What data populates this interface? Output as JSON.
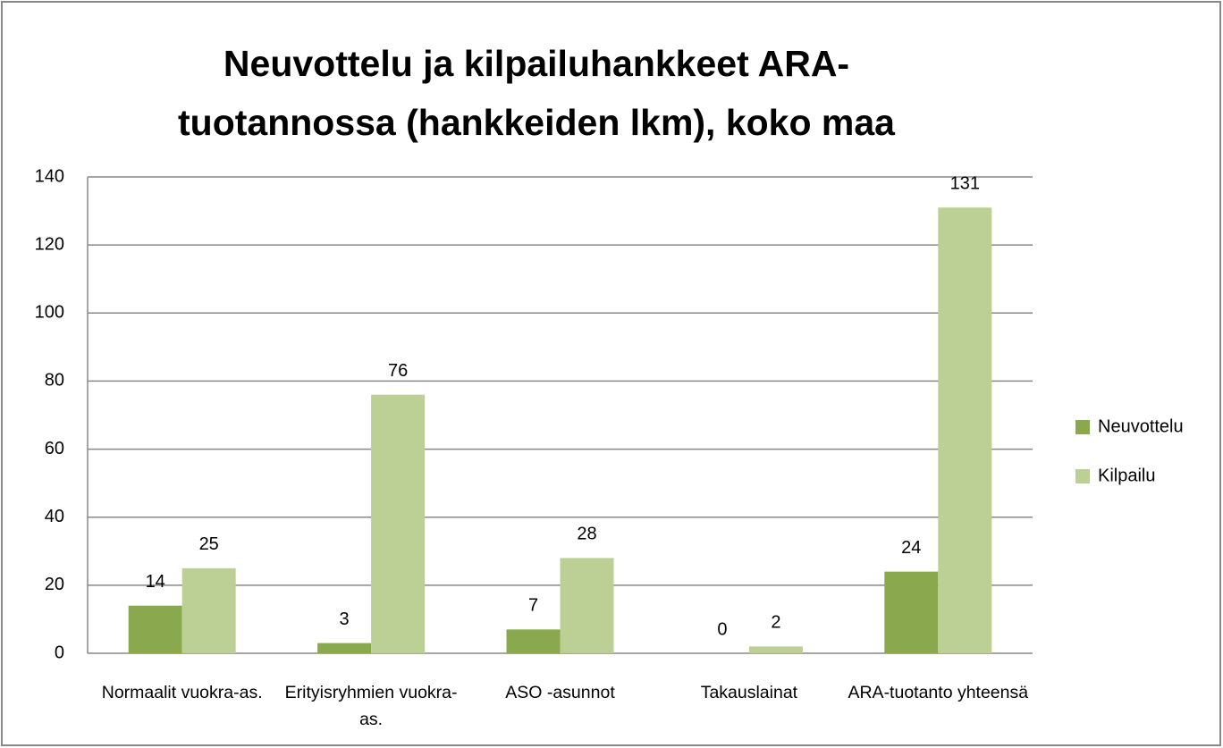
{
  "chart_data": {
    "type": "bar",
    "title": "Neuvottelu ja kilpailuhankkeet ARA-tuotannossa (hankkeiden lkm), koko maa",
    "categories": [
      "Normaalit vuokra-as.",
      "Erityisryhmien vuokra-as.",
      "ASO -asunnot",
      "Takauslainat",
      "ARA-tuotanto yhteensä"
    ],
    "series": [
      {
        "name": "Neuvottelu",
        "color": "#8aa84e",
        "values": [
          14,
          3,
          7,
          0,
          24
        ]
      },
      {
        "name": "Kilpailu",
        "color": "#bcd096",
        "values": [
          25,
          76,
          28,
          2,
          131
        ]
      }
    ],
    "ylim": [
      0,
      140
    ],
    "yticks": [
      0,
      20,
      40,
      60,
      80,
      100,
      120,
      140
    ],
    "grid": true,
    "legend": "right"
  }
}
